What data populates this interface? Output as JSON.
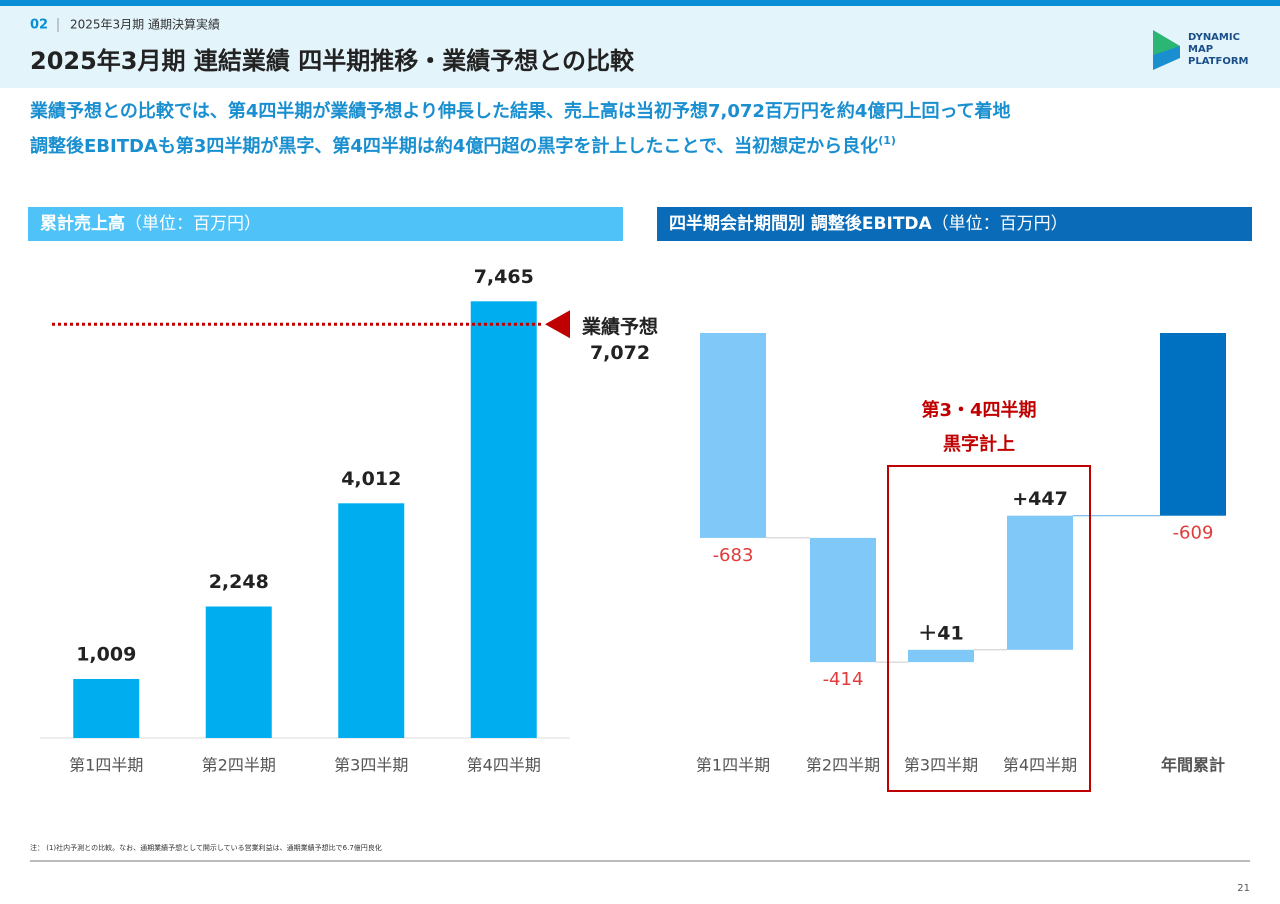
{
  "header": {
    "section": "02",
    "subtitle": "2025年3月期 通期決算実績",
    "title": "2025年3月期 連結業績 四半期推移・業績予想との比較",
    "logo": [
      "DYNAMIC",
      "MAP",
      "PLATFORM"
    ]
  },
  "lead": [
    "業績予想との比較では、第4四半期が業績予想より伸長した結果、売上高は当初予想7,072百万円を約4億円上回って着地",
    "調整後EBITDAも第3四半期が黒字、第4四半期は約4億円超の黒字を計上したことで、当初想定から良化",
    "(1)"
  ],
  "chart_data": [
    {
      "type": "bar",
      "title": "累計売上高",
      "unit": "（単位：百万円）",
      "categories": [
        "第1四半期",
        "第2四半期",
        "第3四半期",
        "第4四半期"
      ],
      "values": [
        1009,
        2248,
        4012,
        7465
      ],
      "value_labels": [
        "1,009",
        "2,248",
        "4,012",
        "7,465"
      ],
      "color": "#00aeef",
      "ylim": [
        0,
        8000
      ],
      "reference": {
        "label": "業績予想",
        "value": 7072,
        "value_label": "7,072",
        "color": "#c00000"
      }
    },
    {
      "type": "waterfall",
      "title": "四半期会計期間別 調整後EBITDA",
      "unit": "（単位：百万円）",
      "categories": [
        "第1四半期",
        "第2四半期",
        "第3四半期",
        "第4四半期",
        "年間累計"
      ],
      "values": [
        -683,
        -414,
        41,
        447,
        -609
      ],
      "value_labels": [
        "-683",
        "-414",
        "＋41",
        "+447",
        "-609"
      ],
      "total_index": 4,
      "color": "#80c8f8",
      "total_color": "#0070c0",
      "negative_label_color": "#e03c3c",
      "ylim": [
        -1400,
        0
      ],
      "annotation": [
        "第3・4四半期",
        "黒字計上"
      ]
    }
  ],
  "footnote": "注： (1)社内予測との比較。なお、通期業績予想として開示している営業利益は、通期業績予想比で6.7億円良化",
  "page": "21"
}
